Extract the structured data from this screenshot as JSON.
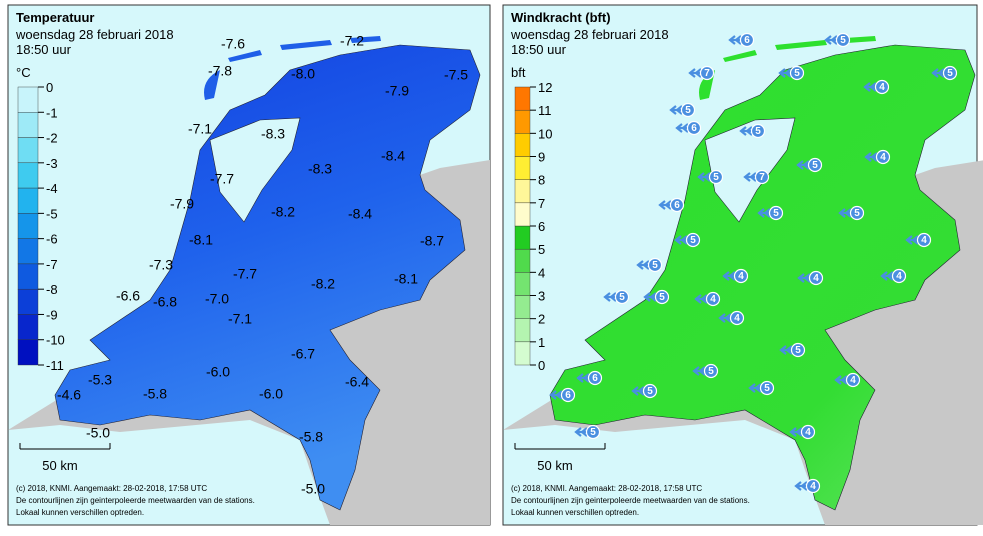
{
  "panels": [
    {
      "title": "Temperatuur",
      "date": "woensdag 28 februari 2018",
      "time": "18:50 uur",
      "unit": "°C",
      "legend": {
        "labels": [
          "0",
          "-1",
          "-2",
          "-3",
          "-4",
          "-5",
          "-6",
          "-7",
          "-8",
          "-9",
          "-10",
          "-11"
        ],
        "colors": [
          "#c8f4fb",
          "#9eeaf7",
          "#6fddf3",
          "#3fcbef",
          "#22b3ee",
          "#1595ea",
          "#1277e6",
          "#0f5ae0",
          "#0c3fd8",
          "#0826cc",
          "#0010c0"
        ]
      },
      "scale": "50 km",
      "footer": [
        "(c) 2018, KNMI. Aangemaakt: 28-02-2018, 17:58 UTC",
        "De contourlijnen zijn geinterpoleerde meetwaarden van de stations.",
        "Lokaal kunnen verschillen optreden."
      ],
      "labels": [
        "-7.6",
        "-7.2",
        "-7.8",
        "-8.0",
        "-7.5",
        "-7.9",
        "-7.1",
        "-8.3",
        "-8.3",
        "-8.4",
        "-7.7",
        "-7.9",
        "-8.2",
        "-8.4",
        "-8.1",
        "-8.7",
        "-7.3",
        "-7.7",
        "-8.2",
        "-8.1",
        "-6.6",
        "-6.8",
        "-7.0",
        "-7.1",
        "-6.7",
        "-6.4",
        "-5.3",
        "-6.0",
        "-4.6",
        "-5.8",
        "-6.0",
        "-5.0",
        "-5.8",
        "-5.0"
      ]
    },
    {
      "title": "Windkracht (bft)",
      "date": "woensdag 28 februari 2018",
      "time": "18:50 uur",
      "unit": "bft",
      "legend": {
        "labels": [
          "0",
          "1",
          "2",
          "3",
          "4",
          "5",
          "6",
          "7",
          "8",
          "9",
          "10",
          "11",
          "12"
        ],
        "colors": [
          "#d4fcd0",
          "#b4f4b0",
          "#94ec90",
          "#74e470",
          "#50da4c",
          "#22cc22",
          "#fffccc",
          "#fff799",
          "#ffee33",
          "#ffcc00",
          "#ff9900",
          "#ff7700"
        ]
      },
      "scale": "50 km",
      "footer": [
        "(c) 2018, KNMI. Aangemaakt: 28-02-2018, 17:58 UTC",
        "De contourlijnen zijn geinterpoleerde meetwaarden van de stations.",
        "Lokaal kunnen verschillen optreden."
      ],
      "labels": [
        6,
        5,
        7,
        5,
        5,
        5,
        4,
        6,
        5,
        5,
        4,
        5,
        7,
        6,
        5,
        5,
        5,
        4,
        5,
        4,
        4,
        4,
        5,
        5,
        4,
        4,
        5,
        5,
        4,
        5,
        6,
        6,
        5,
        4,
        5,
        4
      ]
    }
  ]
}
